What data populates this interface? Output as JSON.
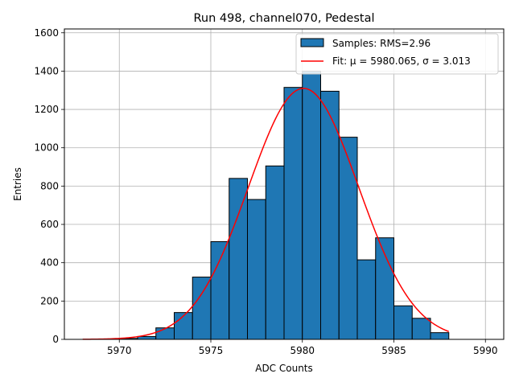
{
  "chart_data": {
    "type": "bar",
    "title": "Run 498, channel070, Pedestal",
    "xlabel": "ADC Counts",
    "ylabel": "Entries",
    "xlim": [
      5967,
      5991
    ],
    "ylim": [
      0,
      1620
    ],
    "xticks": [
      5970,
      5975,
      5980,
      5985,
      5990
    ],
    "yticks": [
      0,
      200,
      400,
      600,
      800,
      1000,
      1200,
      1400,
      1600
    ],
    "grid": true,
    "legend_position": "top-right",
    "histogram": {
      "name": "Samples: RMS=2.96",
      "bin_edges": [
        5970,
        5971,
        5972,
        5973,
        5974,
        5975,
        5976,
        5977,
        5978,
        5979,
        5980,
        5981,
        5982,
        5983,
        5984,
        5985,
        5986,
        5987,
        5988
      ],
      "counts": [
        5,
        15,
        60,
        140,
        325,
        510,
        840,
        730,
        905,
        1315,
        1400,
        1295,
        1055,
        415,
        530,
        175,
        110,
        35
      ],
      "color": "#1f77b4"
    },
    "fit": {
      "name": "Fit: μ = 5980.065, σ = 3.013",
      "mu": 5980.065,
      "sigma": 3.013,
      "amplitude": 1310,
      "x_range": [
        5968,
        5988
      ],
      "color": "#ff0000"
    }
  }
}
